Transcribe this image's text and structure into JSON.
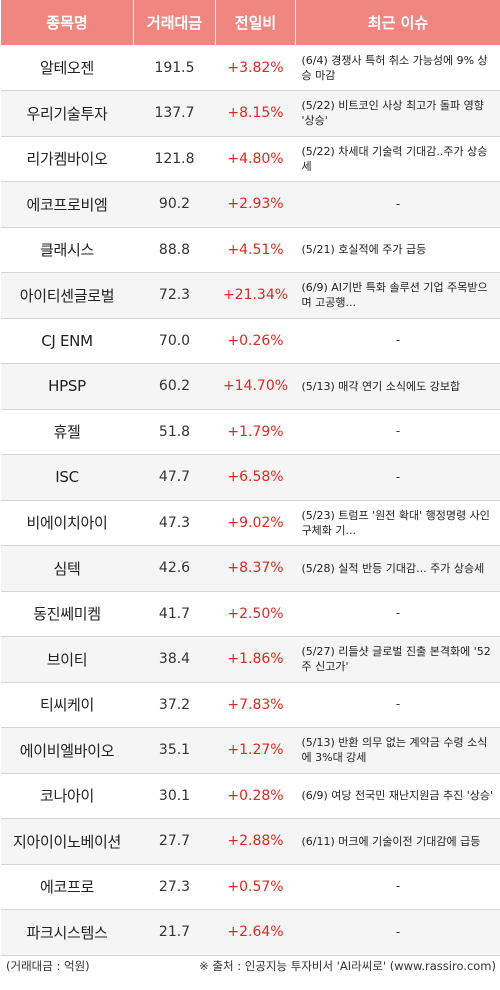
{
  "header": {
    "name": "종목명",
    "amount": "거래대금",
    "change": "전일비",
    "issue": "최근 이슈"
  },
  "rows": [
    {
      "name": "알테오젠",
      "amount": "191.5",
      "change": "+3.82%",
      "issue": "(6/4) 경쟁사 특허 취소 가능성에 9% 상승 마감"
    },
    {
      "name": "우리기술투자",
      "amount": "137.7",
      "change": "+8.15%",
      "issue": "(5/22) 비트코인 사상 최고가 돌파 영향 '상승'"
    },
    {
      "name": "리가켐바이오",
      "amount": "121.8",
      "change": "+4.80%",
      "issue": "(5/22) 차세대 기술력 기대감..주가 상승세"
    },
    {
      "name": "에코프로비엠",
      "amount": "90.2",
      "change": "+2.93%",
      "issue": "-"
    },
    {
      "name": "클래시스",
      "amount": "88.8",
      "change": "+4.51%",
      "issue": "(5/21) 호실적에 주가 급등"
    },
    {
      "name": "아이티센글로벌",
      "amount": "72.3",
      "change": "+21.34%",
      "issue": "(6/9) AI기반 특화 솔루션 기업 주목받으며 고공행..."
    },
    {
      "name": "CJ ENM",
      "amount": "70.0",
      "change": "+0.26%",
      "issue": "-"
    },
    {
      "name": "HPSP",
      "amount": "60.2",
      "change": "+14.70%",
      "issue": "(5/13) 매각 연기 소식에도 강보합"
    },
    {
      "name": "휴젤",
      "amount": "51.8",
      "change": "+1.79%",
      "issue": "-"
    },
    {
      "name": "ISC",
      "amount": "47.7",
      "change": "+6.58%",
      "issue": "-"
    },
    {
      "name": "비에이치아이",
      "amount": "47.3",
      "change": "+9.02%",
      "issue": "(5/23) 트럼프 '원전 확대' 행정명령 사인 구체화 기..."
    },
    {
      "name": "심텍",
      "amount": "42.6",
      "change": "+8.37%",
      "issue": "(5/28) 실적 반등 기대감... 주가 상승세"
    },
    {
      "name": "동진쎄미켐",
      "amount": "41.7",
      "change": "+2.50%",
      "issue": "-"
    },
    {
      "name": "브이티",
      "amount": "38.4",
      "change": "+1.86%",
      "issue": "(5/27) 리들샷 글로벌 진출 본격화에 '52주 신고가'"
    },
    {
      "name": "티씨케이",
      "amount": "37.2",
      "change": "+7.83%",
      "issue": "-"
    },
    {
      "name": "에이비엘바이오",
      "amount": "35.1",
      "change": "+1.27%",
      "issue": "(5/13) 반환 의무 없는 계약금 수령 소식에 3%대 강세"
    },
    {
      "name": "코나아이",
      "amount": "30.1",
      "change": "+0.28%",
      "issue": "(6/9) 여당 전국민 재난지원금 추진 '상승'"
    },
    {
      "name": "지아이이노베이션",
      "amount": "27.7",
      "change": "+2.88%",
      "issue": "(6/11) 머크에 기술이전 기대감에 급등"
    },
    {
      "name": "에코프로",
      "amount": "27.3",
      "change": "+0.57%",
      "issue": "-"
    },
    {
      "name": "파크시스템스",
      "amount": "21.7",
      "change": "+2.64%",
      "issue": "-"
    }
  ],
  "footer": {
    "unit_note": "(거래대금 : 억원)",
    "source": "※ 출처 : 인공지능 투자비서 'AI라씨로' (www.rassiro.com)"
  },
  "colors": {
    "header_bg": "#f08680",
    "positive": "#e0291e",
    "stripe": "#f5f5f5"
  }
}
